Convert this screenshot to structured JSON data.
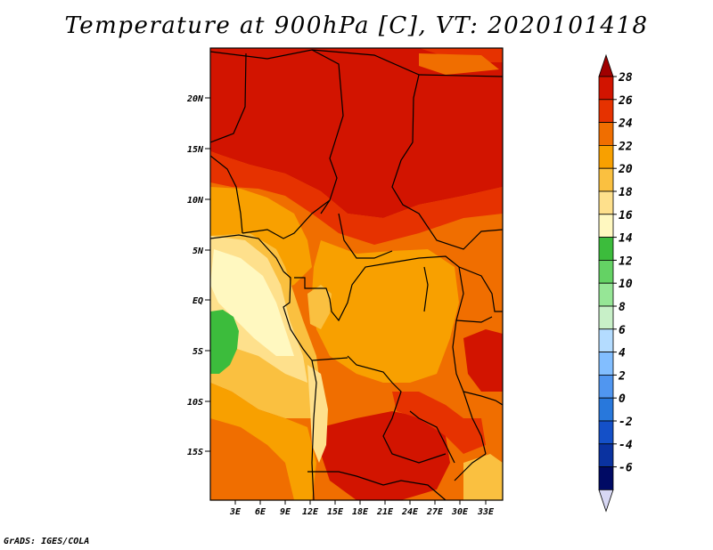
{
  "title": "Temperature at 900hPa [C], VT: 2020101418",
  "credit": "GrADS: IGES/COLA",
  "map": {
    "lat_labels": [
      "20N",
      "15N",
      "10N",
      "5N",
      "EQ",
      "5S",
      "10S",
      "15S"
    ],
    "lon_labels": [
      "3E",
      "6E",
      "9E",
      "12E",
      "15E",
      "18E",
      "21E",
      "24E",
      "27E",
      "30E",
      "33E"
    ]
  },
  "colorbar": {
    "levels": [
      "28",
      "26",
      "24",
      "22",
      "20",
      "18",
      "16",
      "14",
      "12",
      "10",
      "8",
      "6",
      "4",
      "2",
      "0",
      "-2",
      "-4",
      "-6"
    ],
    "colors": [
      "#a00000",
      "#d21400",
      "#e63200",
      "#f06e00",
      "#f8a000",
      "#fac040",
      "#fee08c",
      "#fff8c0",
      "#3cbc3c",
      "#64d264",
      "#96e696",
      "#c8f0c8",
      "#b4dcff",
      "#82beff",
      "#5096f0",
      "#2878dc",
      "#1450c8",
      "#0a32a0",
      "#000a64",
      "#d8d8f4"
    ]
  }
}
